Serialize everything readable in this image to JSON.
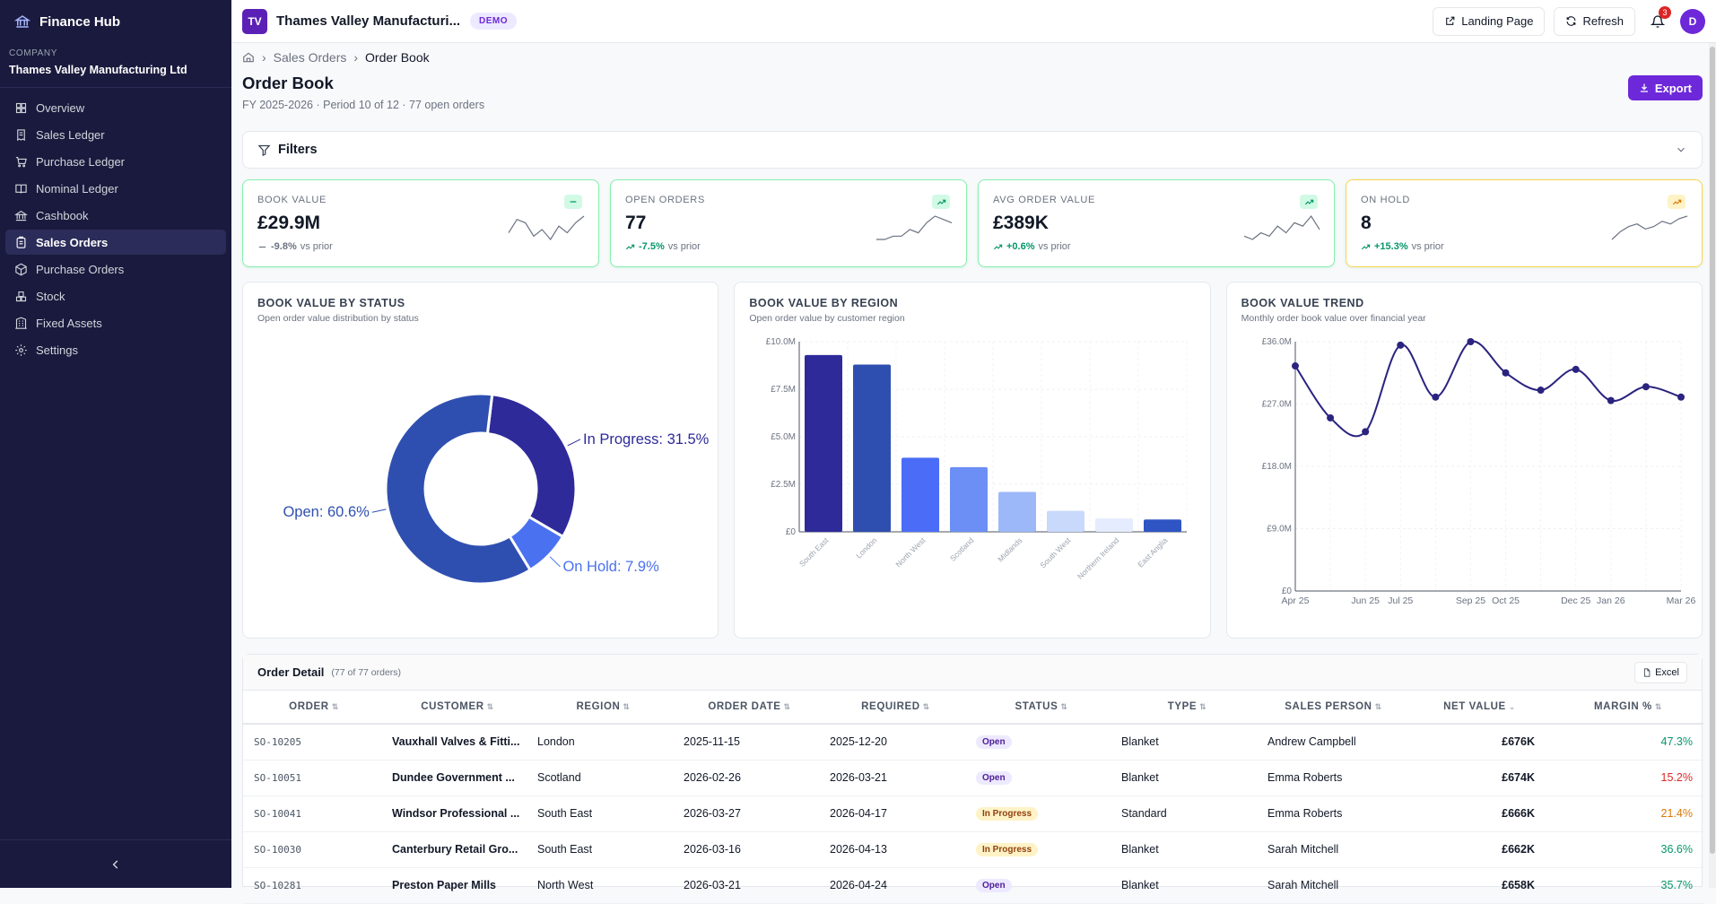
{
  "sidebar": {
    "app_name": "Finance Hub",
    "company_caption": "COMPANY",
    "company_name": "Thames Valley Manufacturing Ltd",
    "items": [
      {
        "label": "Overview",
        "icon": "grid-icon"
      },
      {
        "label": "Sales Ledger",
        "icon": "receipt-icon"
      },
      {
        "label": "Purchase Ledger",
        "icon": "cart-icon"
      },
      {
        "label": "Nominal Ledger",
        "icon": "book-icon"
      },
      {
        "label": "Cashbook",
        "icon": "bank-icon"
      },
      {
        "label": "Sales Orders",
        "icon": "clipboard-icon",
        "active": true
      },
      {
        "label": "Purchase Orders",
        "icon": "package-icon"
      },
      {
        "label": "Stock",
        "icon": "boxes-icon"
      },
      {
        "label": "Fixed Assets",
        "icon": "building-icon"
      },
      {
        "label": "Settings",
        "icon": "gear-icon"
      }
    ]
  },
  "topbar": {
    "logo": "TV",
    "company": "Thames Valley Manufacturi...",
    "badge": "DEMO",
    "landing_label": "Landing Page",
    "refresh_label": "Refresh",
    "notif_count": "3",
    "avatar": "D"
  },
  "breadcrumb": {
    "parent": "Sales Orders",
    "current": "Order Book"
  },
  "page": {
    "title": "Order Book",
    "subtitle": "FY 2025-2026 · Period 10 of 12 · 77 open orders",
    "export_label": "Export",
    "filters_label": "Filters"
  },
  "kpis": [
    {
      "label": "BOOK VALUE",
      "value": "£29.9M",
      "delta": "-9.8%",
      "suffix": "vs prior",
      "trend": "flat",
      "spark": [
        5,
        9,
        8,
        4,
        6,
        3,
        7,
        5,
        8,
        10
      ]
    },
    {
      "label": "OPEN ORDERS",
      "value": "77",
      "delta": "-7.5%",
      "suffix": "vs prior",
      "trend": "up",
      "spark": [
        2,
        2,
        3,
        3,
        5,
        4,
        7,
        9,
        8,
        7
      ]
    },
    {
      "label": "AVG ORDER VALUE",
      "value": "£389K",
      "delta": "+0.6%",
      "suffix": "vs prior",
      "trend": "up",
      "spark": [
        3,
        2,
        4,
        3,
        6,
        4,
        7,
        6,
        9,
        5
      ]
    },
    {
      "label": "ON HOLD",
      "value": "8",
      "delta": "+15.3%",
      "suffix": "vs prior",
      "trend": "up",
      "spark": [
        1,
        4,
        6,
        7,
        5,
        6,
        8,
        7,
        9,
        10
      ],
      "warn": true
    }
  ],
  "charts": {
    "status": {
      "title": "BOOK VALUE BY STATUS",
      "subtitle": "Open order value distribution by status"
    },
    "region": {
      "title": "BOOK VALUE BY REGION",
      "subtitle": "Open order value by customer region"
    },
    "trend": {
      "title": "BOOK VALUE TREND",
      "subtitle": "Monthly order book value over financial year"
    }
  },
  "chart_data": [
    {
      "type": "pie",
      "title": "BOOK VALUE BY STATUS",
      "slices": [
        {
          "name": "Open",
          "value": 60.6,
          "label": "Open: 60.6%",
          "color": "#2f4fb0"
        },
        {
          "name": "In Progress",
          "value": 31.5,
          "label": "In Progress: 31.5%",
          "color": "#2e2a9a"
        },
        {
          "name": "On Hold",
          "value": 7.9,
          "label": "On Hold: 7.9%",
          "color": "#4a72f0"
        }
      ]
    },
    {
      "type": "bar",
      "title": "BOOK VALUE BY REGION",
      "categories": [
        "South East",
        "London",
        "North West",
        "Scotland",
        "Midlands",
        "South West",
        "Northern Ireland",
        "East Anglia"
      ],
      "values": [
        9.3,
        8.8,
        3.9,
        3.4,
        2.1,
        1.1,
        0.7,
        0.65
      ],
      "colors": [
        "#2e2a9a",
        "#2f4fb0",
        "#4a6cf7",
        "#6b8ff5",
        "#9cb8f8",
        "#c8d9fb",
        "#e4ecfd",
        "#2f55c4"
      ],
      "ylim": [
        0,
        10
      ],
      "yticks": [
        "£0",
        "£2.5M",
        "£5.0M",
        "£7.5M",
        "£10.0M"
      ]
    },
    {
      "type": "line",
      "title": "BOOK VALUE TREND",
      "x": [
        "Apr 25",
        "May 25",
        "Jun 25",
        "Jul 25",
        "Aug 25",
        "Sep 25",
        "Oct 25",
        "Nov 25",
        "Dec 25",
        "Jan 26",
        "Feb 26",
        "Mar 26"
      ],
      "xticks": [
        "Apr 25",
        "Jun 25",
        "Jul 25",
        "Sep 25",
        "Oct 25",
        "Dec 25",
        "Jan 26",
        "Mar 26"
      ],
      "values": [
        32.5,
        25.0,
        23.0,
        35.5,
        28.0,
        36.0,
        31.5,
        29.0,
        32.0,
        27.5,
        29.5,
        28.0
      ],
      "ylim": [
        0,
        36
      ],
      "yticks": [
        "£0",
        "£9.0M",
        "£18.0M",
        "£27.0M",
        "£36.0M"
      ],
      "color": "#2a237f"
    }
  ],
  "table": {
    "heading": "Order Detail",
    "count": "(77 of 77 orders)",
    "excel_label": "Excel",
    "columns": [
      "ORDER",
      "CUSTOMER",
      "REGION",
      "ORDER DATE",
      "REQUIRED",
      "STATUS",
      "TYPE",
      "SALES PERSON",
      "NET VALUE",
      "MARGIN %"
    ],
    "rows": [
      {
        "order": "SO-10205",
        "customer": "Vauxhall Valves & Fitti...",
        "region": "London",
        "date": "2025-11-15",
        "required": "2025-12-20",
        "status": "Open",
        "type": "Blanket",
        "person": "Andrew Campbell",
        "net": "£676K",
        "margin": "47.3%",
        "mcolor": "#059669"
      },
      {
        "order": "SO-10051",
        "customer": "Dundee Government ...",
        "region": "Scotland",
        "date": "2026-02-26",
        "required": "2026-03-21",
        "status": "Open",
        "type": "Blanket",
        "person": "Emma Roberts",
        "net": "£674K",
        "margin": "15.2%",
        "mcolor": "#dc2626"
      },
      {
        "order": "SO-10041",
        "customer": "Windsor Professional ...",
        "region": "South East",
        "date": "2026-03-27",
        "required": "2026-04-17",
        "status": "In Progress",
        "type": "Standard",
        "person": "Emma Roberts",
        "net": "£666K",
        "margin": "21.4%",
        "mcolor": "#d97706"
      },
      {
        "order": "SO-10030",
        "customer": "Canterbury Retail Gro...",
        "region": "South East",
        "date": "2026-03-16",
        "required": "2026-04-13",
        "status": "In Progress",
        "type": "Blanket",
        "person": "Sarah Mitchell",
        "net": "£662K",
        "margin": "36.6%",
        "mcolor": "#059669"
      },
      {
        "order": "SO-10281",
        "customer": "Preston Paper Mills",
        "region": "North West",
        "date": "2026-03-21",
        "required": "2026-04-24",
        "status": "Open",
        "type": "Blanket",
        "person": "Sarah Mitchell",
        "net": "£658K",
        "margin": "35.7%",
        "mcolor": "#059669"
      }
    ]
  }
}
